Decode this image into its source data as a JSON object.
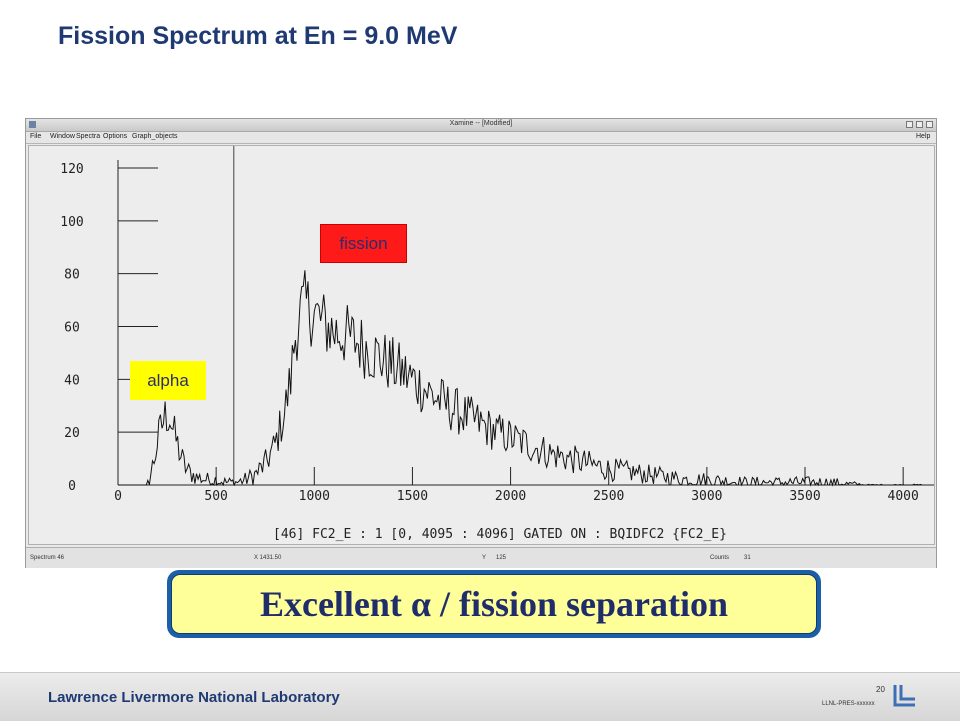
{
  "slide": {
    "title": "Fission Spectrum at En = 9.0 MeV",
    "callout_text": "Excellent α / fission separation",
    "footer_lab": "Lawrence Livermore National Laboratory",
    "page_number": "20",
    "doc_id": "LLNL-PRES-xxxxxx"
  },
  "window": {
    "title": "Xamine -- [Modified]",
    "menu": [
      "File",
      "Window",
      "Spectra",
      "Options",
      "Graph_objects"
    ],
    "help": "Help",
    "status": {
      "spectrum": "Spectrum 46",
      "x": "X 1431.50",
      "y": "Y",
      "y_val": "125",
      "counts": "Counts",
      "counts_val": "31"
    }
  },
  "labels": {
    "alpha": "alpha",
    "fission": "fission"
  },
  "colors": {
    "title": "#1f3a73",
    "alpha_tag": "#ffff00",
    "fission_tag": "#ff1a1a",
    "callout_fill": "#ffff99",
    "callout_border": "#1a5fa8"
  },
  "chart_data": {
    "type": "line",
    "title": "",
    "xlabel": "[46] FC2_E : 1 [0, 4095 : 4096] GATED ON : BQIDFC2 {FC2_E}",
    "ylabel": "",
    "xlim": [
      0,
      4096
    ],
    "ylim": [
      0,
      120
    ],
    "xticks": [
      0,
      500,
      1000,
      1500,
      2000,
      2500,
      3000,
      3500,
      4000
    ],
    "yticks": [
      0,
      20,
      40,
      60,
      80,
      100,
      120
    ],
    "marker_x": 590,
    "x": [
      0,
      150,
      180,
      200,
      220,
      240,
      260,
      280,
      300,
      320,
      340,
      360,
      380,
      400,
      450,
      500,
      550,
      600,
      650,
      700,
      750,
      800,
      850,
      880,
      900,
      920,
      940,
      960,
      980,
      1000,
      1050,
      1100,
      1150,
      1200,
      1300,
      1400,
      1500,
      1600,
      1700,
      1800,
      1900,
      2000,
      2100,
      2200,
      2300,
      2400,
      2500,
      2600,
      2700,
      2800,
      2900,
      3000,
      3200,
      3400,
      3600,
      3800,
      4095
    ],
    "y": [
      0,
      0,
      8,
      16,
      22,
      26,
      27,
      21,
      16,
      11,
      7,
      5,
      4,
      3,
      2,
      2,
      1,
      1,
      2,
      4,
      8,
      15,
      28,
      40,
      55,
      63,
      67,
      68,
      66,
      65,
      61,
      58,
      57,
      55,
      50,
      45,
      40,
      34,
      29,
      25,
      21,
      18,
      15,
      12,
      10,
      8,
      6,
      5,
      4,
      3,
      2,
      2,
      1,
      1,
      1,
      0,
      0
    ]
  }
}
